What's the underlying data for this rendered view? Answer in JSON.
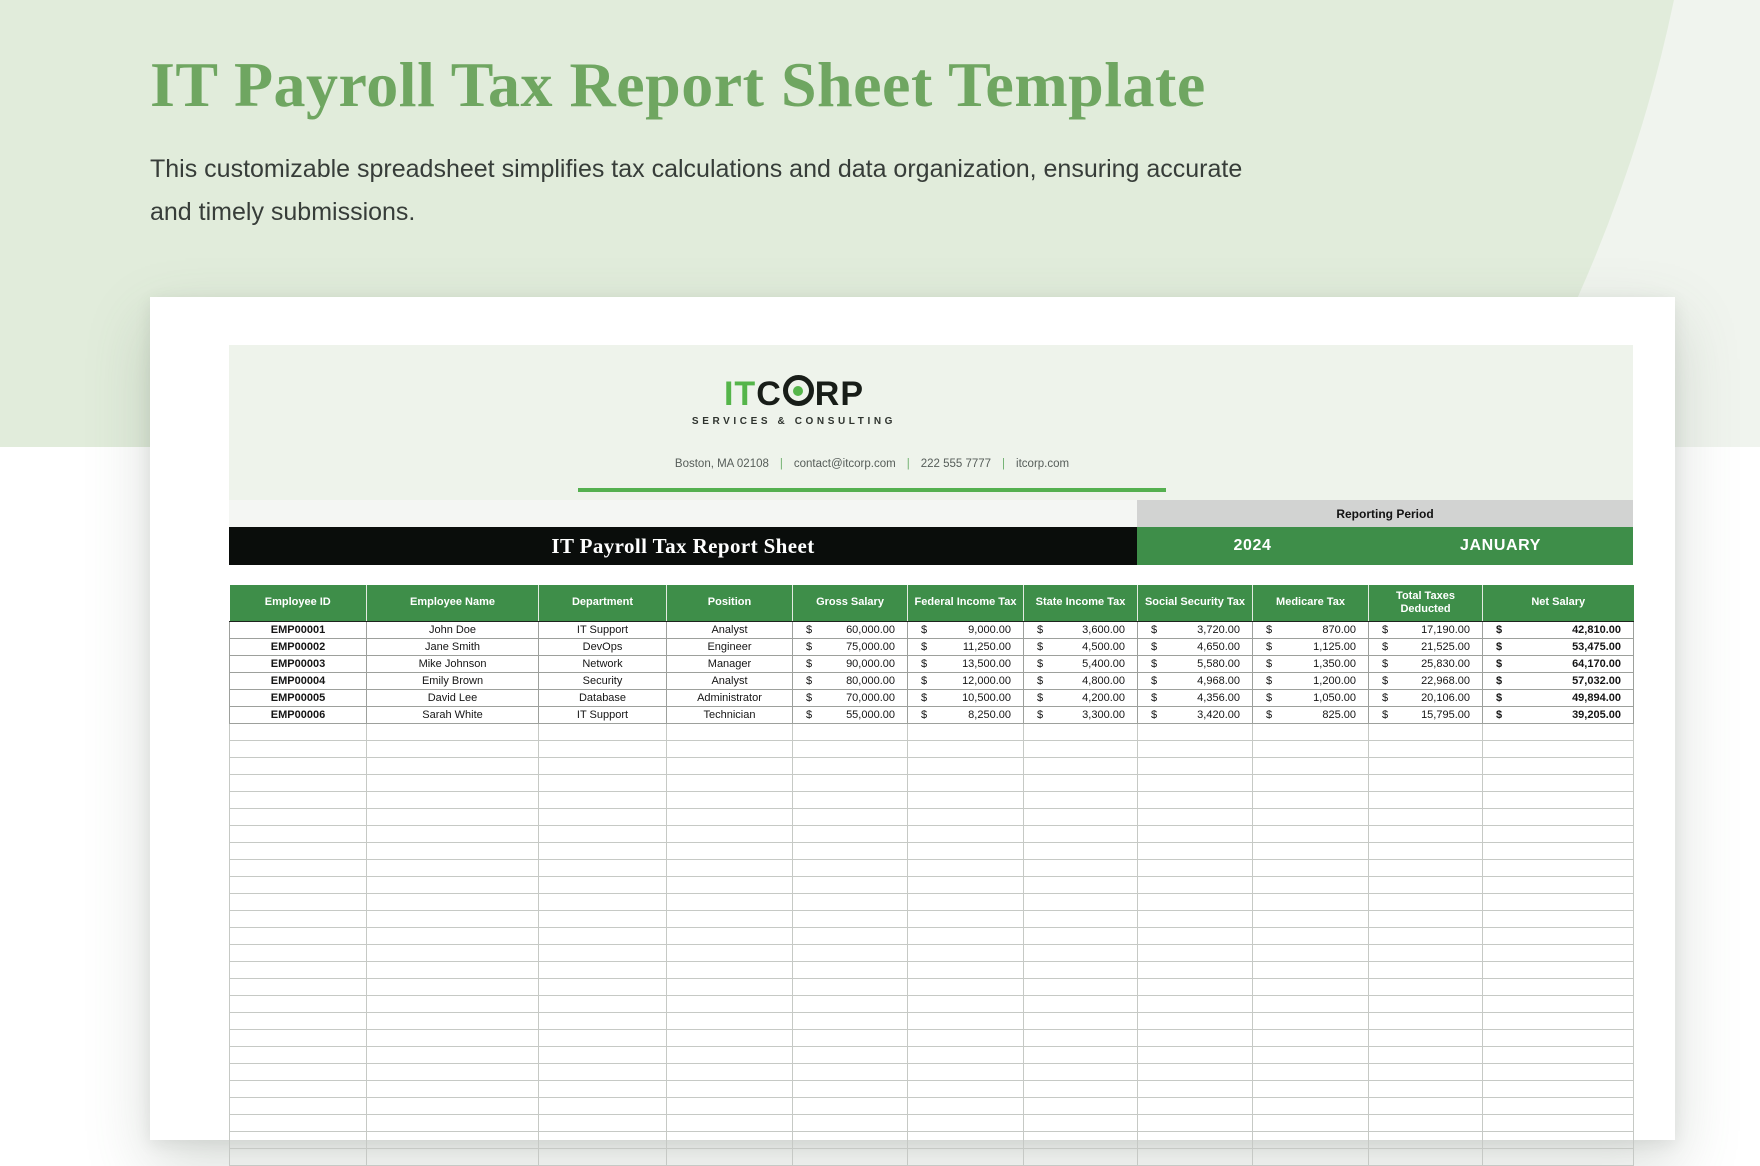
{
  "colors": {
    "accent_green": "#3E8E49",
    "title_green": "#6FA661",
    "bar_black": "#0A0D0B",
    "logo_green": "#55B54A",
    "underline_green": "#54B04F",
    "reporting_band_gray": "#D2D3D2",
    "letterhead_bg": "#EEF3EB"
  },
  "page": {
    "title": "IT Payroll Tax Report Sheet Template",
    "description_line1": "This customizable spreadsheet simplifies tax calculations and data organization, ensuring accurate",
    "description_line2": "and timely submissions."
  },
  "brand": {
    "logo_it": "IT",
    "logo_corp_c": "C",
    "logo_corp_rp": "RP",
    "tagline": "SERVICES & CONSULTING",
    "contact": {
      "address": "Boston, MA 02108",
      "email": "contact@itcorp.com",
      "phone": "222 555 7777",
      "website": "itcorp.com",
      "separator": "|"
    }
  },
  "sheet": {
    "reporting_period_label": "Reporting Period",
    "title": "IT Payroll Tax Report Sheet",
    "year": "2024",
    "month": "JANUARY"
  },
  "table": {
    "currency_symbol": "$",
    "headers": [
      "Employee ID",
      "Employee Name",
      "Department",
      "Position",
      "Gross Salary",
      "Federal Income Tax",
      "State Income Tax",
      "Social Security Tax",
      "Medicare Tax",
      "Total Taxes Deducted",
      "Net Salary"
    ],
    "money_columns": [
      4,
      5,
      6,
      7,
      8,
      9,
      10
    ],
    "bold_columns": [
      0,
      10
    ],
    "rows": [
      [
        "EMP00001",
        "John Doe",
        "IT Support",
        "Analyst",
        "60,000.00",
        "9,000.00",
        "3,600.00",
        "3,720.00",
        "870.00",
        "17,190.00",
        "42,810.00"
      ],
      [
        "EMP00002",
        "Jane Smith",
        "DevOps",
        "Engineer",
        "75,000.00",
        "11,250.00",
        "4,500.00",
        "4,650.00",
        "1,125.00",
        "21,525.00",
        "53,475.00"
      ],
      [
        "EMP00003",
        "Mike Johnson",
        "Network",
        "Manager",
        "90,000.00",
        "13,500.00",
        "5,400.00",
        "5,580.00",
        "1,350.00",
        "25,830.00",
        "64,170.00"
      ],
      [
        "EMP00004",
        "Emily Brown",
        "Security",
        "Analyst",
        "80,000.00",
        "12,000.00",
        "4,800.00",
        "4,968.00",
        "1,200.00",
        "22,968.00",
        "57,032.00"
      ],
      [
        "EMP00005",
        "David Lee",
        "Database",
        "Administrator",
        "70,000.00",
        "10,500.00",
        "4,200.00",
        "4,356.00",
        "1,050.00",
        "20,106.00",
        "49,894.00"
      ],
      [
        "EMP00006",
        "Sarah White",
        "IT Support",
        "Technician",
        "55,000.00",
        "8,250.00",
        "3,300.00",
        "3,420.00",
        "825.00",
        "15,795.00",
        "39,205.00"
      ]
    ],
    "empty_row_count": 26
  }
}
